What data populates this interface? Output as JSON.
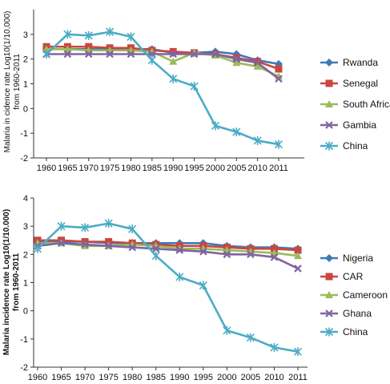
{
  "chart_data": [
    {
      "type": "line",
      "ylabel": [
        "Malaria in cidence rate Log10(1/10,000)",
        "from 1960-2011"
      ],
      "categories": [
        "1960",
        "1965",
        "1970",
        "1975",
        "1980",
        "1985",
        "1990",
        "1995",
        "2000",
        "2005",
        "2010",
        "2011"
      ],
      "yticks": [
        "-2",
        "-1",
        "0",
        "1",
        "2",
        "3"
      ],
      "ylim": [
        -2,
        4
      ],
      "grid": false,
      "legend_position": "right",
      "series": [
        {
          "name": "Rwanda",
          "color": "#3d7ab8",
          "marker": "diamond",
          "values": [
            2.4,
            2.4,
            2.4,
            2.4,
            2.4,
            2.4,
            2.25,
            2.25,
            2.3,
            2.2,
            1.95,
            1.8
          ]
        },
        {
          "name": "Senegal",
          "color": "#c9473f",
          "marker": "square",
          "values": [
            2.5,
            2.5,
            2.5,
            2.45,
            2.45,
            2.35,
            2.3,
            2.25,
            2.2,
            2.05,
            1.9,
            1.6
          ]
        },
        {
          "name": "South Africa",
          "color": "#9bbb59",
          "marker": "triangle",
          "values": [
            2.4,
            2.4,
            2.35,
            2.35,
            2.35,
            2.3,
            1.9,
            2.25,
            2.15,
            1.85,
            1.7,
            1.3
          ]
        },
        {
          "name": "Gambia",
          "color": "#8064a2",
          "marker": "x",
          "values": [
            2.2,
            2.2,
            2.2,
            2.2,
            2.2,
            2.2,
            2.2,
            2.2,
            2.2,
            2.0,
            1.85,
            1.2
          ]
        },
        {
          "name": "China",
          "color": "#4bacc6",
          "marker": "star",
          "values": [
            2.2,
            3.0,
            2.95,
            3.1,
            2.9,
            1.95,
            1.2,
            0.9,
            -0.7,
            -0.95,
            -1.3,
            -1.45
          ]
        }
      ]
    },
    {
      "type": "line",
      "ylabel": [
        "Malaria incidence rate Log10(1/10.000)",
        "from 1960-2011"
      ],
      "categories": [
        "1960",
        "1965",
        "1970",
        "1975",
        "1980",
        "1985",
        "1990",
        "1995",
        "2000",
        "2005",
        "2010",
        "2011"
      ],
      "yticks": [
        "-2",
        "-1",
        "0",
        "1",
        "2",
        "3",
        "4"
      ],
      "ylim": [
        -2,
        4
      ],
      "grid": false,
      "legend_position": "right",
      "series": [
        {
          "name": "Nigeria",
          "color": "#3d7ab8",
          "marker": "diamond",
          "values": [
            2.45,
            2.45,
            2.45,
            2.4,
            2.4,
            2.4,
            2.4,
            2.4,
            2.3,
            2.25,
            2.25,
            2.2
          ]
        },
        {
          "name": "CAR",
          "color": "#c9473f",
          "marker": "square",
          "values": [
            2.5,
            2.5,
            2.45,
            2.45,
            2.4,
            2.35,
            2.3,
            2.3,
            2.25,
            2.2,
            2.2,
            2.15
          ]
        },
        {
          "name": "Cameroon",
          "color": "#9bbb59",
          "marker": "triangle",
          "values": [
            2.4,
            2.4,
            2.3,
            2.3,
            2.35,
            2.3,
            2.2,
            2.2,
            2.15,
            2.1,
            2.05,
            1.95
          ]
        },
        {
          "name": "Ghana",
          "color": "#8064a2",
          "marker": "x",
          "values": [
            2.3,
            2.4,
            2.35,
            2.3,
            2.25,
            2.2,
            2.15,
            2.1,
            2.0,
            2.0,
            1.9,
            1.5
          ]
        },
        {
          "name": "China",
          "color": "#4bacc6",
          "marker": "star",
          "values": [
            2.2,
            3.0,
            2.95,
            3.1,
            2.9,
            1.95,
            1.2,
            0.9,
            -0.7,
            -0.95,
            -1.3,
            -1.45
          ]
        }
      ]
    }
  ]
}
